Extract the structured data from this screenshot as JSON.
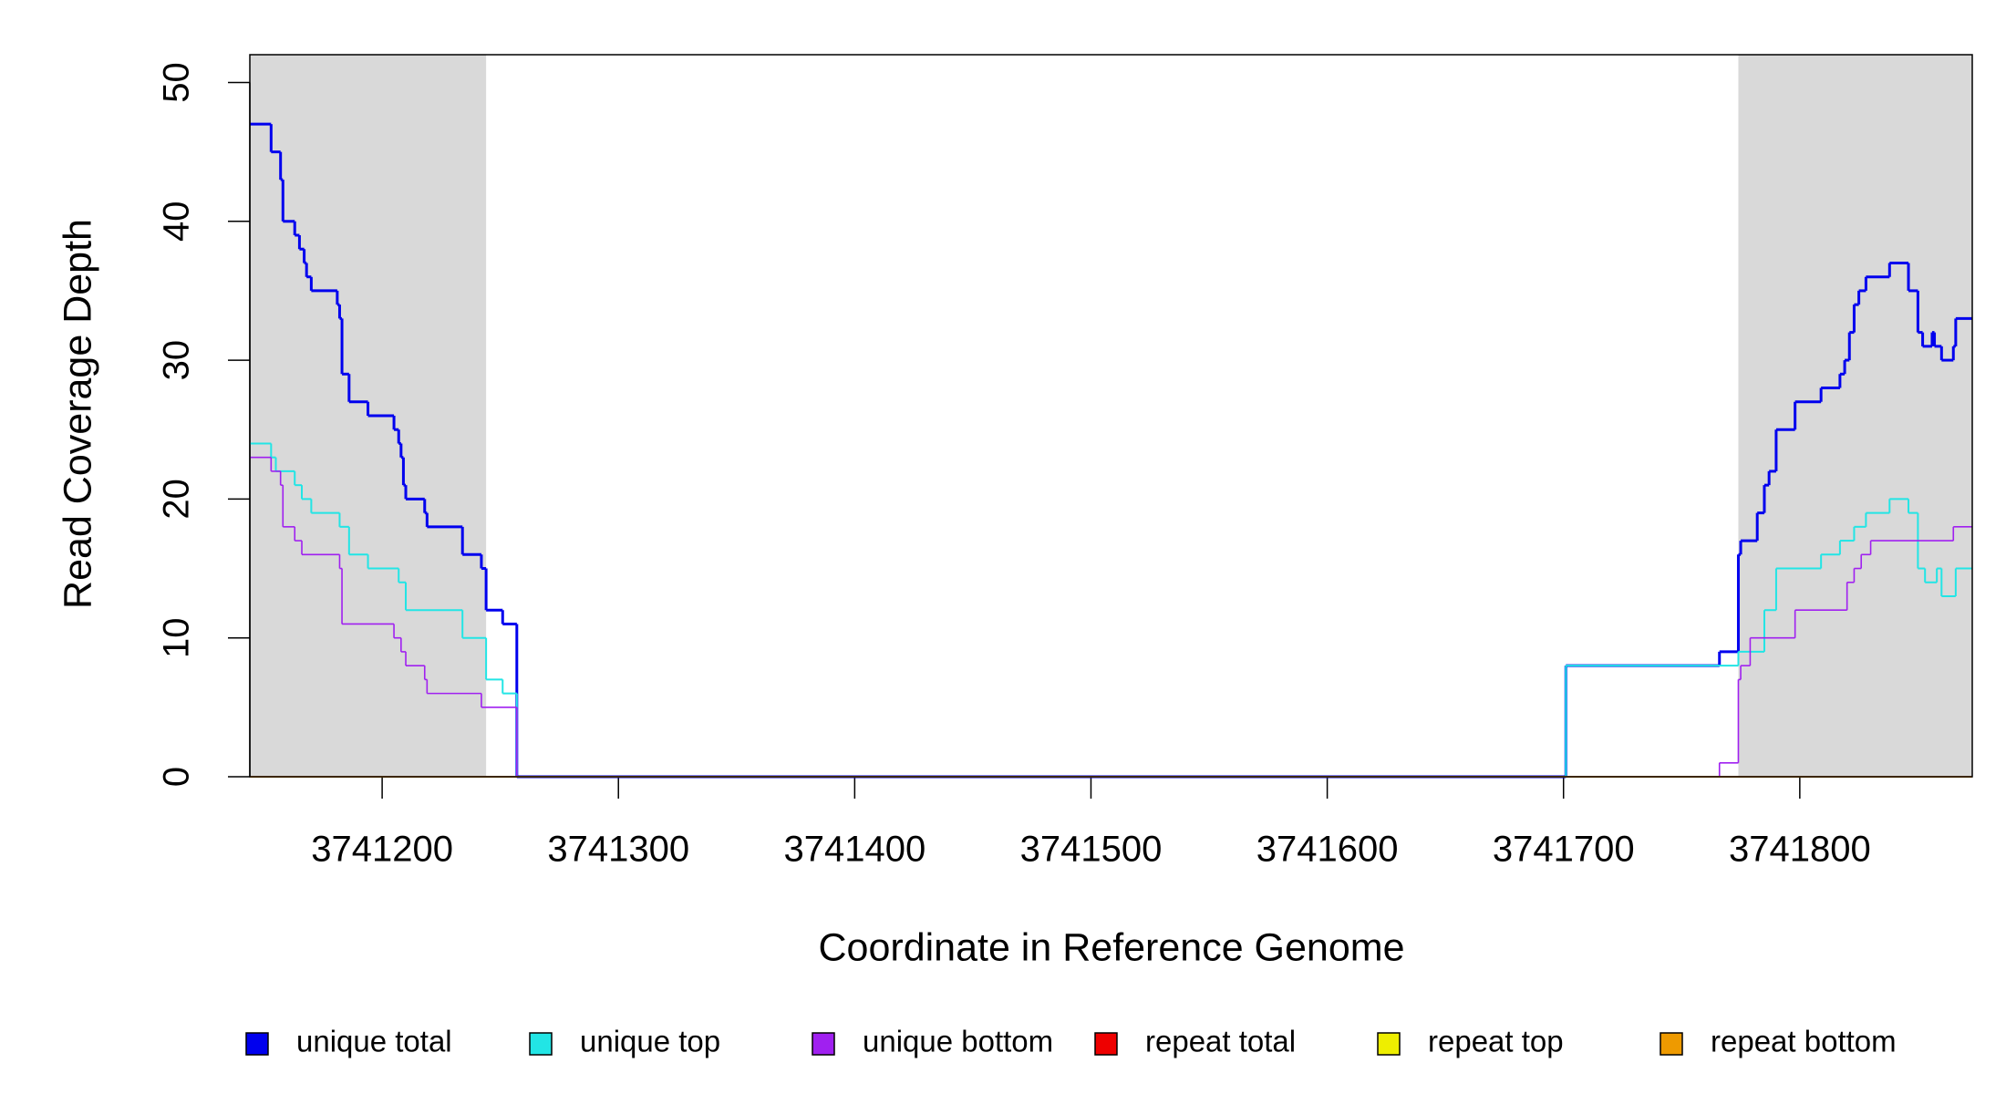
{
  "chart_data": {
    "type": "step",
    "x_label": "Coordinate in Reference Genome",
    "y_label": "Read Coverage Depth",
    "xlim": [
      3741144,
      3741873
    ],
    "ylim": [
      0,
      52
    ],
    "xticks": [
      3741200,
      3741300,
      3741400,
      3741500,
      3741600,
      3741700,
      3741800
    ],
    "yticks": [
      0,
      10,
      20,
      30,
      40,
      50
    ],
    "shaded_regions": [
      [
        3741144,
        3741244
      ],
      [
        3741774,
        3741873
      ]
    ],
    "shade_color": "#d9d9d9",
    "series": [
      {
        "name": "unique total",
        "color": "#0000ee",
        "width": 3,
        "x": [
          3741144,
          3741153,
          3741157,
          3741158,
          3741163,
          3741165,
          3741167,
          3741168,
          3741170,
          3741181,
          3741182,
          3741183,
          3741186,
          3741194,
          3741205,
          3741207,
          3741208,
          3741209,
          3741210,
          3741218,
          3741219,
          3741234,
          3741242,
          3741244,
          3741251,
          3741257,
          3741701,
          3741766,
          3741774,
          3741775,
          3741782,
          3741785,
          3741787,
          3741790,
          3741798,
          3741809,
          3741817,
          3741819,
          3741821,
          3741823,
          3741825,
          3741828,
          3741838,
          3741846,
          3741850,
          3741852,
          3741856,
          3741857,
          3741860,
          3741865,
          3741866,
          3741873
        ],
        "values": [
          47,
          45,
          43,
          40,
          39,
          38,
          37,
          36,
          35,
          34,
          33,
          29,
          27,
          26,
          25,
          24,
          23,
          21,
          20,
          19,
          18,
          16,
          15,
          12,
          11,
          0,
          8,
          9,
          16,
          17,
          19,
          21,
          22,
          25,
          27,
          28,
          29,
          30,
          32,
          34,
          35,
          36,
          37,
          35,
          32,
          31,
          32,
          31,
          30,
          31,
          33,
          33
        ]
      },
      {
        "name": "unique top",
        "color": "#22e5e5",
        "width": 2,
        "x": [
          3741144,
          3741153,
          3741155,
          3741163,
          3741166,
          3741170,
          3741182,
          3741186,
          3741194,
          3741207,
          3741210,
          3741234,
          3741244,
          3741251,
          3741257,
          3741701,
          3741774,
          3741785,
          3741790,
          3741809,
          3741817,
          3741823,
          3741828,
          3741838,
          3741846,
          3741850,
          3741853,
          3741858,
          3741860,
          3741866,
          3741873
        ],
        "values": [
          24,
          23,
          22,
          21,
          20,
          19,
          18,
          16,
          15,
          14,
          12,
          10,
          7,
          6,
          0,
          8,
          9,
          12,
          15,
          16,
          17,
          18,
          19,
          20,
          19,
          15,
          14,
          15,
          13,
          15,
          15
        ]
      },
      {
        "name": "unique bottom",
        "color": "#a020f0",
        "width": 1.6,
        "x": [
          3741144,
          3741153,
          3741157,
          3741158,
          3741163,
          3741166,
          3741182,
          3741183,
          3741205,
          3741208,
          3741210,
          3741218,
          3741219,
          3741242,
          3741257,
          3741766,
          3741774,
          3741775,
          3741779,
          3741798,
          3741820,
          3741823,
          3741826,
          3741830,
          3741865,
          3741873
        ],
        "values": [
          23,
          22,
          21,
          18,
          17,
          16,
          15,
          11,
          10,
          9,
          8,
          7,
          6,
          5,
          0,
          1,
          7,
          8,
          10,
          12,
          14,
          15,
          16,
          17,
          18,
          18
        ]
      },
      {
        "name": "repeat total",
        "color": "#ee0000",
        "width": 2,
        "x": [
          3741144,
          3741873
        ],
        "values": [
          0,
          0
        ]
      },
      {
        "name": "repeat top",
        "color": "#eeee00",
        "width": 2,
        "x": [
          3741144,
          3741873
        ],
        "values": [
          0,
          0
        ]
      },
      {
        "name": "repeat bottom",
        "color": "#ee9a00",
        "width": 2,
        "x": [
          3741144,
          3741873
        ],
        "values": [
          0,
          0
        ]
      }
    ]
  }
}
